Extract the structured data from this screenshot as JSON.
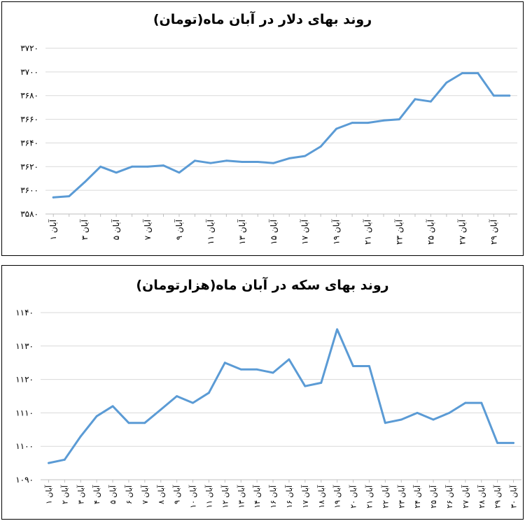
{
  "chart_data": [
    {
      "type": "line",
      "title": "روند بهای دلار در آبان ماه(تومان)",
      "color": "#5b9bd5",
      "ylim": [
        3580,
        3720
      ],
      "yticks": [
        "۳۵۸۰",
        "۳۶۰۰",
        "۳۶۲۰",
        "۳۶۴۰",
        "۳۶۶۰",
        "۳۶۸۰",
        "۳۷۰۰",
        "۳۷۲۰"
      ],
      "ytick_values": [
        3580,
        3600,
        3620,
        3640,
        3660,
        3680,
        3700,
        3720
      ],
      "grid": true,
      "legend": "none",
      "x_labels": [
        "۱ آبان",
        "",
        "۳ آبان",
        "",
        "۵ آبان",
        "",
        "۷ آبان",
        "",
        "۹ آبان",
        "",
        "۱۱ آبان",
        "",
        "۱۳ آبان",
        "",
        "۱۵ آبان",
        "",
        "۱۷ آبان",
        "",
        "۱۹ آبان",
        "",
        "۲۱ آبان",
        "",
        "۲۳ آبان",
        "",
        "۲۵ آبان",
        "",
        "۲۷ آبان",
        "",
        "۲۹ آبان",
        ""
      ],
      "values": [
        3594,
        3595,
        3607,
        3620,
        3615,
        3620,
        3620,
        3621,
        3615,
        3625,
        3623,
        3625,
        3624,
        3624,
        3623,
        3627,
        3629,
        3637,
        3652,
        3657,
        3657,
        3659,
        3660,
        3677,
        3675,
        3691,
        3699,
        3699,
        3680,
        3680
      ]
    },
    {
      "type": "line",
      "title": "روند بهای سکه در آبان ماه(هزارتومان)",
      "color": "#5b9bd5",
      "ylim": [
        1090,
        1140
      ],
      "yticks": [
        "۱۰۹۰",
        "۱۱۰۰",
        "۱۱۱۰",
        "۱۱۲۰",
        "۱۱۳۰",
        "۱۱۴۰"
      ],
      "ytick_values": [
        1090,
        1100,
        1110,
        1120,
        1130,
        1140
      ],
      "grid": true,
      "legend": "none",
      "x_labels": [
        "۱ آبان",
        "۲ آبان",
        "۳ آبان",
        "۴ آبان",
        "۵ آبان",
        "۶ آبان",
        "۷ آبان",
        "۸ آبان",
        "۹ آبان",
        "۱۰ آبان",
        "۱۱ آبان",
        "۱۲ آبان",
        "۱۳ آبان",
        "۱۴ آبان",
        "۱۶ آبان",
        "۱۶ آبان",
        "۱۷ آبان",
        "۱۸ آبان",
        "۱۹ آبان",
        "۲۰ آبان",
        "۲۱ آبان",
        "۲۲ آبان",
        "۲۳ آبان",
        "۲۴ آبان",
        "۲۵ آبان",
        "۲۶ آبان",
        "۲۷ آبان",
        "۲۸ آبان",
        "۲۹ آبان",
        "۳۰ آبان"
      ],
      "values": [
        1095,
        1096,
        1103,
        1109,
        1112,
        1107,
        1107,
        1111,
        1115,
        1113,
        1116,
        1125,
        1123,
        1123,
        1122,
        1126,
        1118,
        1119,
        1135,
        1124,
        1124,
        1107,
        1108,
        1110,
        1108,
        1110,
        1113,
        1113,
        1101,
        1101
      ]
    }
  ]
}
